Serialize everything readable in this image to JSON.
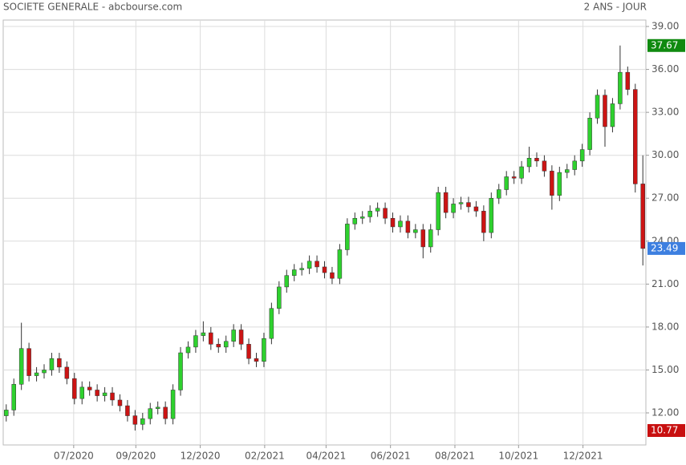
{
  "chart_data": {
    "type": "candlestick",
    "title": "SOCIETE GENERALE - abcbourse.com",
    "subtitle": "2 ANS - JOUR",
    "up_color": "#2ed12e",
    "down_color": "#cc1414",
    "grid": true,
    "xlim": [
      -0.4,
      84.4
    ],
    "xticks": [
      {
        "value": 8.9,
        "label": "07/2020"
      },
      {
        "value": 17.1,
        "label": "09/2020"
      },
      {
        "value": 25.6,
        "label": "12/2020"
      },
      {
        "value": 34.1,
        "label": "02/2021"
      },
      {
        "value": 42.2,
        "label": "04/2021"
      },
      {
        "value": 50.7,
        "label": "06/2021"
      },
      {
        "value": 59.2,
        "label": "08/2021"
      },
      {
        "value": 67.6,
        "label": "10/2021"
      },
      {
        "value": 76.1,
        "label": "12/2021"
      }
    ],
    "ylim": [
      9.76,
      39.45
    ],
    "yticks": [
      {
        "value": 12,
        "label": "12.00"
      },
      {
        "value": 15,
        "label": "15.00"
      },
      {
        "value": 18,
        "label": "18.00"
      },
      {
        "value": 21,
        "label": "21.00"
      },
      {
        "value": 24,
        "label": "24.00"
      },
      {
        "value": 27,
        "label": "27.00"
      },
      {
        "value": 30,
        "label": "30.00"
      },
      {
        "value": 33,
        "label": "33.00"
      },
      {
        "value": 36,
        "label": "36.00"
      },
      {
        "value": 39,
        "label": "39.00"
      }
    ],
    "open": [
      11.8,
      12.2,
      14.0,
      16.5,
      14.6,
      14.8,
      15.0,
      15.8,
      15.2,
      14.4,
      13.0,
      13.8,
      13.6,
      13.2,
      13.4,
      12.9,
      12.5,
      11.8,
      11.2,
      11.6,
      12.3,
      12.4,
      11.6,
      13.6,
      16.2,
      16.6,
      17.4,
      17.6,
      16.8,
      16.6,
      17.0,
      17.8,
      16.8,
      15.8,
      15.6,
      17.2,
      19.3,
      20.8,
      21.6,
      22.0,
      22.1,
      22.6,
      22.2,
      21.8,
      21.4,
      23.4,
      25.2,
      25.6,
      25.7,
      26.1,
      26.3,
      25.6,
      25.0,
      25.4,
      24.6,
      24.8,
      23.6,
      24.8,
      27.4,
      26.0,
      26.6,
      26.7,
      26.4,
      26.1,
      24.6,
      27.0,
      27.6,
      28.5,
      28.4,
      29.2,
      29.8,
      29.6,
      28.9,
      27.2,
      28.8,
      29.0,
      29.6,
      30.4,
      32.6,
      34.2,
      32.0,
      33.6,
      35.8,
      34.6,
      28.0
    ],
    "high": [
      12.6,
      14.4,
      18.3,
      16.9,
      15.2,
      15.4,
      16.2,
      16.2,
      15.6,
      14.8,
      14.2,
      14.2,
      14.0,
      13.8,
      13.8,
      13.3,
      12.9,
      12.2,
      12.0,
      12.7,
      12.8,
      12.8,
      14.0,
      16.6,
      17.0,
      17.8,
      18.4,
      18.0,
      17.2,
      17.4,
      18.2,
      18.2,
      17.2,
      16.2,
      17.6,
      19.7,
      21.2,
      22.0,
      22.4,
      22.5,
      23.0,
      23.0,
      22.6,
      22.2,
      23.8,
      25.6,
      26.0,
      26.1,
      26.5,
      26.7,
      26.7,
      26.0,
      25.8,
      25.8,
      25.2,
      25.2,
      25.2,
      27.8,
      27.8,
      27.0,
      27.1,
      27.1,
      26.8,
      26.5,
      27.4,
      28.0,
      28.9,
      28.9,
      29.6,
      30.6,
      30.2,
      30.0,
      29.3,
      29.2,
      29.4,
      30.0,
      30.8,
      33.0,
      34.6,
      34.6,
      34.0,
      37.67,
      36.2,
      35.0,
      30.0
    ],
    "low": [
      11.4,
      11.8,
      13.6,
      14.2,
      14.2,
      14.4,
      14.6,
      14.8,
      14.0,
      12.6,
      12.6,
      13.2,
      12.8,
      12.8,
      12.5,
      12.1,
      11.4,
      10.77,
      10.8,
      11.2,
      11.9,
      11.2,
      11.2,
      13.2,
      15.8,
      16.2,
      17.0,
      16.4,
      16.2,
      16.2,
      16.6,
      16.4,
      15.4,
      15.2,
      15.2,
      16.8,
      18.9,
      20.4,
      21.2,
      21.6,
      21.7,
      21.8,
      21.4,
      21.0,
      21.0,
      23.0,
      24.8,
      25.2,
      25.3,
      25.7,
      25.2,
      24.6,
      24.6,
      24.2,
      24.2,
      22.8,
      23.2,
      24.4,
      25.6,
      25.6,
      26.2,
      26.0,
      25.7,
      24.0,
      24.2,
      26.6,
      27.2,
      28.0,
      28.0,
      28.8,
      29.2,
      28.5,
      26.2,
      26.8,
      28.4,
      28.6,
      29.2,
      30.0,
      32.2,
      30.6,
      31.6,
      33.2,
      34.2,
      27.4,
      22.3
    ],
    "close": [
      12.2,
      14.0,
      16.5,
      14.6,
      14.8,
      15.0,
      15.8,
      15.2,
      14.4,
      13.0,
      13.8,
      13.6,
      13.2,
      13.4,
      12.9,
      12.5,
      11.8,
      11.2,
      11.6,
      12.3,
      12.4,
      11.6,
      13.6,
      16.2,
      16.6,
      17.4,
      17.6,
      16.8,
      16.6,
      17.0,
      17.8,
      16.8,
      15.8,
      15.6,
      17.2,
      19.3,
      20.8,
      21.6,
      22.0,
      22.1,
      22.6,
      22.2,
      21.8,
      21.4,
      23.4,
      25.2,
      25.6,
      25.7,
      26.1,
      26.3,
      25.6,
      25.0,
      25.4,
      24.6,
      24.8,
      23.6,
      24.8,
      27.4,
      26.0,
      26.6,
      26.7,
      26.4,
      26.1,
      24.6,
      27.0,
      27.6,
      28.5,
      28.4,
      29.2,
      29.8,
      29.6,
      28.9,
      27.2,
      28.8,
      29.0,
      29.6,
      30.4,
      32.6,
      34.2,
      32.0,
      33.6,
      35.8,
      34.6,
      28.0,
      23.49
    ],
    "markers": [
      {
        "value": 37.67,
        "color": "#108a10"
      },
      {
        "value": 23.49,
        "color": "#3d7fe0"
      },
      {
        "value": 10.77,
        "color": "#c81010"
      }
    ]
  }
}
